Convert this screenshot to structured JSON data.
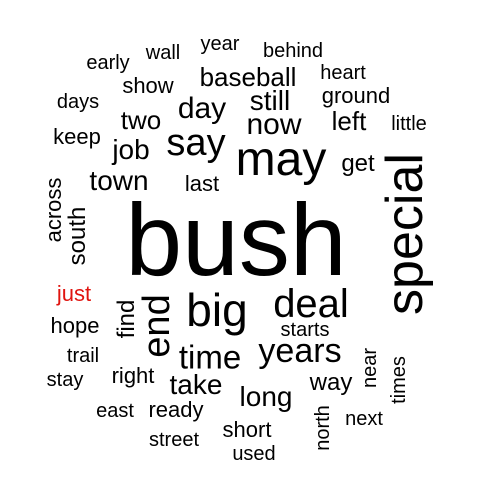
{
  "colors": {
    "default": "#000000",
    "highlight": "#e0140f",
    "background": "#ffffff"
  },
  "words": [
    {
      "text": "bush",
      "highlight": false,
      "vertical": false
    },
    {
      "text": "special",
      "highlight": false,
      "vertical": true
    },
    {
      "text": "may",
      "highlight": false,
      "vertical": false
    },
    {
      "text": "big",
      "highlight": false,
      "vertical": false
    },
    {
      "text": "deal",
      "highlight": false,
      "vertical": false
    },
    {
      "text": "say",
      "highlight": false,
      "vertical": false
    },
    {
      "text": "end",
      "highlight": false,
      "vertical": true
    },
    {
      "text": "years",
      "highlight": false,
      "vertical": false
    },
    {
      "text": "time",
      "highlight": false,
      "vertical": false
    },
    {
      "text": "now",
      "highlight": false,
      "vertical": false
    },
    {
      "text": "day",
      "highlight": false,
      "vertical": false
    },
    {
      "text": "still",
      "highlight": false,
      "vertical": false
    },
    {
      "text": "town",
      "highlight": false,
      "vertical": false
    },
    {
      "text": "job",
      "highlight": false,
      "vertical": false
    },
    {
      "text": "two",
      "highlight": false,
      "vertical": false
    },
    {
      "text": "left",
      "highlight": false,
      "vertical": false
    },
    {
      "text": "baseball",
      "highlight": false,
      "vertical": false
    },
    {
      "text": "take",
      "highlight": false,
      "vertical": false
    },
    {
      "text": "long",
      "highlight": false,
      "vertical": false
    },
    {
      "text": "find",
      "highlight": false,
      "vertical": true
    },
    {
      "text": "south",
      "highlight": false,
      "vertical": true
    },
    {
      "text": "ground",
      "highlight": false,
      "vertical": false
    },
    {
      "text": "show",
      "highlight": false,
      "vertical": false
    },
    {
      "text": "last",
      "highlight": false,
      "vertical": false
    },
    {
      "text": "get",
      "highlight": false,
      "vertical": false
    },
    {
      "text": "way",
      "highlight": false,
      "vertical": false
    },
    {
      "text": "across",
      "highlight": false,
      "vertical": true
    },
    {
      "text": "keep",
      "highlight": false,
      "vertical": false
    },
    {
      "text": "behind",
      "highlight": false,
      "vertical": false
    },
    {
      "text": "heart",
      "highlight": false,
      "vertical": false
    },
    {
      "text": "year",
      "highlight": false,
      "vertical": false
    },
    {
      "text": "wall",
      "highlight": false,
      "vertical": false
    },
    {
      "text": "early",
      "highlight": false,
      "vertical": false
    },
    {
      "text": "days",
      "highlight": false,
      "vertical": false
    },
    {
      "text": "little",
      "highlight": false,
      "vertical": false
    },
    {
      "text": "just",
      "highlight": true,
      "vertical": false
    },
    {
      "text": "hope",
      "highlight": false,
      "vertical": false
    },
    {
      "text": "starts",
      "highlight": false,
      "vertical": false
    },
    {
      "text": "trail",
      "highlight": false,
      "vertical": false
    },
    {
      "text": "right",
      "highlight": false,
      "vertical": false
    },
    {
      "text": "stay",
      "highlight": false,
      "vertical": false
    },
    {
      "text": "near",
      "highlight": false,
      "vertical": true
    },
    {
      "text": "times",
      "highlight": false,
      "vertical": true
    },
    {
      "text": "ready",
      "highlight": false,
      "vertical": false
    },
    {
      "text": "east",
      "highlight": false,
      "vertical": false
    },
    {
      "text": "north",
      "highlight": false,
      "vertical": true
    },
    {
      "text": "next",
      "highlight": false,
      "vertical": false
    },
    {
      "text": "short",
      "highlight": false,
      "vertical": false
    },
    {
      "text": "street",
      "highlight": false,
      "vertical": false
    },
    {
      "text": "used",
      "highlight": false,
      "vertical": false
    }
  ]
}
